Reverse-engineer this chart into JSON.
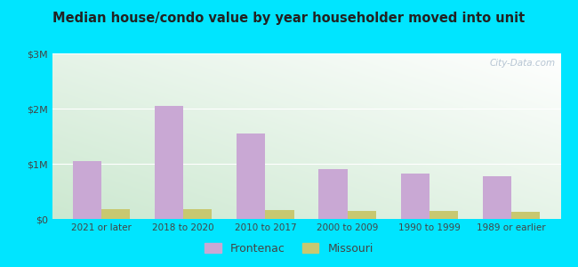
{
  "title": "Median house/condo value by year householder moved into unit",
  "categories": [
    "2021 or later",
    "2018 to 2020",
    "2010 to 2017",
    "2000 to 2009",
    "1990 to 1999",
    "1989 or earlier"
  ],
  "frontenac_values": [
    1050000,
    2050000,
    1550000,
    900000,
    825000,
    775000
  ],
  "missouri_values": [
    185000,
    175000,
    155000,
    150000,
    145000,
    135000
  ],
  "frontenac_color": "#c9a8d4",
  "missouri_color": "#c8c870",
  "ylim": [
    0,
    3000000
  ],
  "yticks": [
    0,
    1000000,
    2000000,
    3000000
  ],
  "ytick_labels": [
    "$0",
    "$1M",
    "$2M",
    "$3M"
  ],
  "background_outer": "#00e5ff",
  "watermark": "City-Data.com",
  "legend_labels": [
    "Frontenac",
    "Missouri"
  ],
  "bar_width": 0.35,
  "gradient_bottom_left": "#cce8d0",
  "gradient_top_right": "#e8f5f5"
}
